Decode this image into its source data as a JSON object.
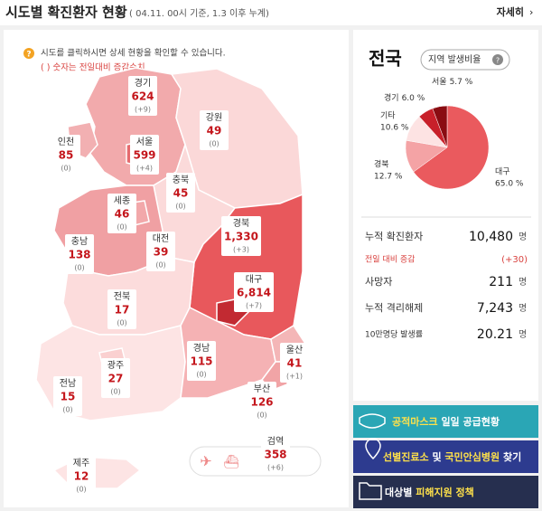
{
  "header": {
    "title": "시도별 확진환자 현황",
    "subtitle": "( 04.11. 00시 기준, 1.3 이후 누계)",
    "more": "자세히"
  },
  "notice": {
    "line1": "시도를 클릭하시면 상세 현황을 확인할 수 있습니다.",
    "line2": "( ) 숫자는 전일대비 증감수치"
  },
  "regions": [
    {
      "name": "경기",
      "count": "624",
      "change": "(+9)"
    },
    {
      "name": "인천",
      "count": "85",
      "change": "(0)"
    },
    {
      "name": "서울",
      "count": "599",
      "change": "(+4)"
    },
    {
      "name": "강원",
      "count": "49",
      "change": "(0)"
    },
    {
      "name": "세종",
      "count": "46",
      "change": "(0)"
    },
    {
      "name": "충북",
      "count": "45",
      "change": "(0)"
    },
    {
      "name": "충남",
      "count": "138",
      "change": "(0)"
    },
    {
      "name": "대전",
      "count": "39",
      "change": "(0)"
    },
    {
      "name": "경북",
      "count": "1,330",
      "change": "(+3)"
    },
    {
      "name": "대구",
      "count": "6,814",
      "change": "(+7)"
    },
    {
      "name": "전북",
      "count": "17",
      "change": "(0)"
    },
    {
      "name": "경남",
      "count": "115",
      "change": "(0)"
    },
    {
      "name": "울산",
      "count": "41",
      "change": "(+1)"
    },
    {
      "name": "광주",
      "count": "27",
      "change": "(0)"
    },
    {
      "name": "전남",
      "count": "15",
      "change": "(0)"
    },
    {
      "name": "부산",
      "count": "126",
      "change": "(0)"
    },
    {
      "name": "검역",
      "count": "358",
      "change": "(+6)"
    },
    {
      "name": "제주",
      "count": "12",
      "change": "(0)"
    }
  ],
  "summary": {
    "title": "전국",
    "badge": "지역 발생비율"
  },
  "chart_data": {
    "type": "pie",
    "slices": [
      {
        "name": "대구",
        "value": 65.0,
        "value_label": "65.0 %",
        "color": "#ea5a5e"
      },
      {
        "name": "경북",
        "value": 12.7,
        "value_label": "12.7 %",
        "color": "#f4a3a5"
      },
      {
        "name": "기타",
        "value": 10.6,
        "value_label": "10.6 %",
        "color": "#fde3e3"
      },
      {
        "name": "경기",
        "value": 6.0,
        "value_label": "6.0 %",
        "color": "#c8202a"
      },
      {
        "name": "서울",
        "value": 5.7,
        "value_label": "5.7 %",
        "color": "#8a0c12"
      }
    ]
  },
  "stats": [
    {
      "label": "누적 확진환자",
      "value": "10,480",
      "unit": "명"
    },
    {
      "label": "전일 대비 증감",
      "value": "(+30)"
    },
    {
      "label": "사망자",
      "value": "211",
      "unit": "명"
    },
    {
      "label": "누적 격리해제",
      "value": "7,243",
      "unit": "명"
    },
    {
      "label": "10만명당 발생률",
      "value": "20.21",
      "unit": "명"
    }
  ],
  "buttons": [
    {
      "highlight": "공적마스크",
      "text": " 일일 공급현황"
    },
    {
      "highlight": "선별진료소",
      "middle": " 및 ",
      "highlight2": "국민안심병원",
      "text": " 찾기"
    }
  ],
  "button3": {
    "text": "대상별 ",
    "highlight": "피해지원 정책"
  }
}
